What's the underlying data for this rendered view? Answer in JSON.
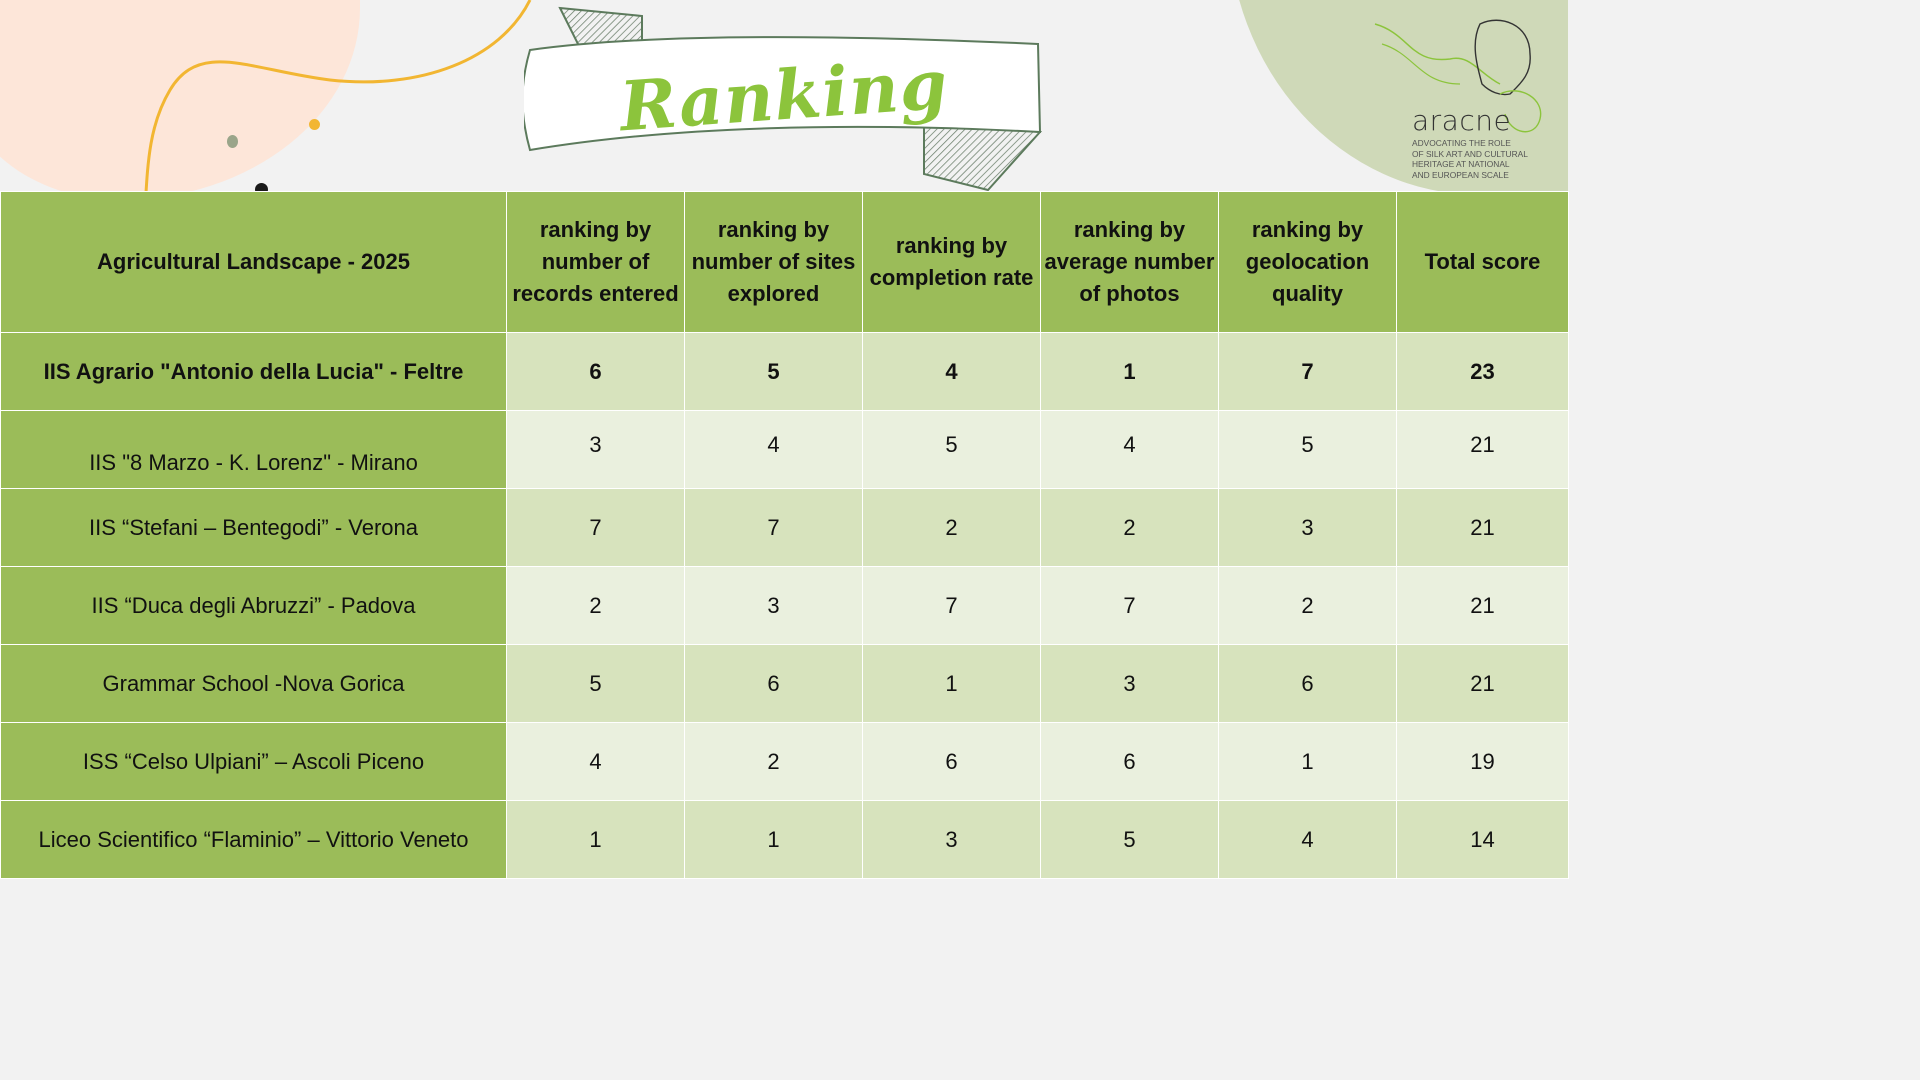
{
  "title": "Ranking",
  "logo": {
    "name": "aracne",
    "tagline": [
      "ADVOCATING THE ROLE",
      "OF SILK ART AND CULTURAL",
      "HERITAGE AT NATIONAL",
      "AND EUROPEAN SCALE"
    ]
  },
  "colors": {
    "header_green": "#9bbc59",
    "row_dark": "#d7e3bd",
    "row_light": "#eaf0de",
    "title_green": "#8cc43c"
  },
  "table": {
    "columns": [
      "Agricultural Landscape - 2025",
      "ranking by number of records entered",
      "ranking by number of sites explored",
      "ranking by completion rate",
      "ranking by average number of photos",
      "ranking by geolocation quality",
      "Total score"
    ],
    "rows": [
      {
        "school": "IIS Agrario \"Antonio della Lucia\" - Feltre",
        "records": "6",
        "sites": "5",
        "completion": "4",
        "photos": "1",
        "geolocation": "7",
        "total": "23"
      },
      {
        "school": "IIS \"8 Marzo - K. Lorenz\" - Mirano",
        "records": "3",
        "sites": "4",
        "completion": "5",
        "photos": "4",
        "geolocation": "5",
        "total": "21"
      },
      {
        "school": "IIS “Stefani – Bentegodi” - Verona",
        "records": "7",
        "sites": "7",
        "completion": "2",
        "photos": "2",
        "geolocation": "3",
        "total": "21"
      },
      {
        "school": "IIS “Duca degli Abruzzi” - Padova",
        "records": "2",
        "sites": "3",
        "completion": "7",
        "photos": "7",
        "geolocation": "2",
        "total": "21"
      },
      {
        "school": "Grammar School -Nova Gorica",
        "records": "5",
        "sites": "6",
        "completion": "1",
        "photos": "3",
        "geolocation": "6",
        "total": "21"
      },
      {
        "school": "ISS “Celso Ulpiani” – Ascoli Piceno",
        "records": "4",
        "sites": "2",
        "completion": "6",
        "photos": "6",
        "geolocation": "1",
        "total": "19"
      },
      {
        "school": "Liceo Scientifico “Flaminio” – Vittorio Veneto",
        "records": "1",
        "sites": "1",
        "completion": "3",
        "photos": "5",
        "geolocation": "4",
        "total": "14"
      }
    ]
  }
}
